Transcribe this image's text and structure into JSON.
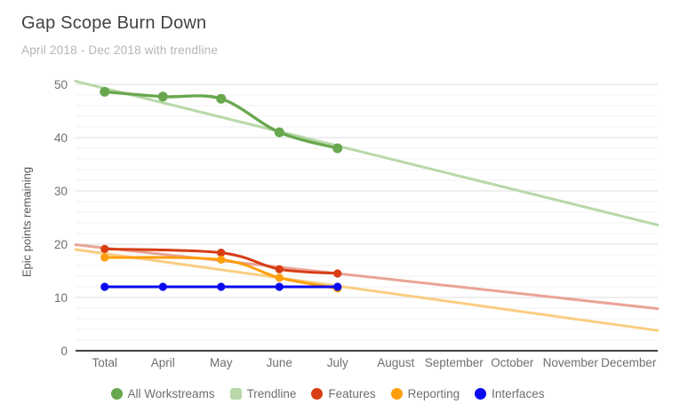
{
  "chart": {
    "title": "Gap Scope Burn Down",
    "subtitle": "April 2018 - Dec 2018 with trendline",
    "ylabel": "Epic points remaining"
  },
  "chart_data": {
    "type": "line",
    "title": "Gap Scope Burn Down",
    "subtitle": "April 2018 - Dec 2018 with trendline",
    "xlabel": "",
    "ylabel": "Epic points remaining",
    "categories": [
      "Total",
      "April",
      "May",
      "June",
      "July",
      "August",
      "September",
      "October",
      "November",
      "December"
    ],
    "ylim": [
      0,
      50
    ],
    "yticks": [
      0,
      10,
      20,
      30,
      40,
      50
    ],
    "minor_gridline_step": 2,
    "grid": true,
    "legend_position": "bottom",
    "series": [
      {
        "name": "All Workstreams",
        "color": "#68a74e",
        "marker": "circle",
        "line_width": 3.3,
        "dot_radius": 5.5,
        "values": [
          48.6,
          47.7,
          47.3,
          41,
          38,
          null,
          null,
          null,
          null,
          null
        ]
      },
      {
        "name": "Features",
        "color": "#d83d14",
        "marker": "circle",
        "line_width": 3,
        "dot_radius": 4.6,
        "values": [
          19.1,
          null,
          18.4,
          15.3,
          14.5,
          null,
          null,
          null,
          null,
          null
        ]
      },
      {
        "name": "Reporting",
        "color": "#ff9e0b",
        "marker": "circle",
        "line_width": 3,
        "dot_radius": 4.6,
        "values": [
          17.5,
          null,
          17.1,
          13.7,
          11.7,
          null,
          null,
          null,
          null,
          null
        ]
      },
      {
        "name": "Interfaces",
        "color": "#0a0af0",
        "marker": "circle",
        "line_width": 3,
        "dot_radius": 4.6,
        "values": [
          12,
          12,
          12,
          12,
          12,
          null,
          null,
          null,
          null,
          null
        ]
      }
    ],
    "trendlines": [
      {
        "name": "Trendline",
        "for": "All Workstreams",
        "color": "#b8d8aa",
        "start_value": 50.6,
        "end_value": 23.6
      },
      {
        "name": "Features trendline",
        "for": "Features",
        "color": "#e9a494",
        "start_value": 19.9,
        "end_value": 7.9
      },
      {
        "name": "Reporting trendline",
        "for": "Reporting",
        "color": "#facd82",
        "start_value": 19.0,
        "end_value": 3.8
      }
    ],
    "legend": [
      {
        "label": "All Workstreams",
        "color": "#68a74e",
        "marker": "circle"
      },
      {
        "label": "Trendline",
        "color": "#b8d8aa",
        "marker": "square"
      },
      {
        "label": "Features",
        "color": "#d83d14",
        "marker": "circle"
      },
      {
        "label": "Reporting",
        "color": "#ff9e0b",
        "marker": "circle"
      },
      {
        "label": "Interfaces",
        "color": "#0a0af0",
        "marker": "circle"
      }
    ],
    "colors": {
      "axis_line": "#424242",
      "major_gridline": "#dcdcdc",
      "minor_gridline": "#f1f1f1",
      "tick_label": "#6f6f6f"
    }
  }
}
